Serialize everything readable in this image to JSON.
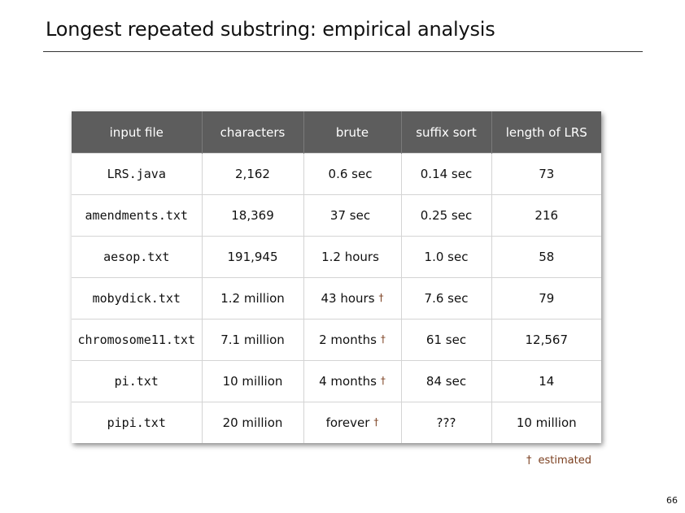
{
  "slide": {
    "title": "Longest repeated substring:  empirical analysis",
    "page_number": "66"
  },
  "table": {
    "headers": [
      "input file",
      "characters",
      "brute",
      "suffix sort",
      "length of LRS"
    ],
    "rows": [
      {
        "file": "LRS.java",
        "characters": "2,162",
        "brute": "0.6 sec",
        "brute_estimated": "",
        "suffix_sort": "0.14 sec",
        "lrs_length": "73"
      },
      {
        "file": "amendments.txt",
        "characters": "18,369",
        "brute": "37 sec",
        "brute_estimated": "",
        "suffix_sort": "0.25 sec",
        "lrs_length": "216"
      },
      {
        "file": "aesop.txt",
        "characters": "191,945",
        "brute": "1.2 hours",
        "brute_estimated": "",
        "suffix_sort": "1.0 sec",
        "lrs_length": "58"
      },
      {
        "file": "mobydick.txt",
        "characters": "1.2 million",
        "brute": "43 hours",
        "brute_estimated": "†",
        "suffix_sort": "7.6 sec",
        "lrs_length": "79"
      },
      {
        "file": "chromosome11.txt",
        "characters": "7.1 million",
        "brute": "2 months",
        "brute_estimated": "†",
        "suffix_sort": "61 sec",
        "lrs_length": "12,567"
      },
      {
        "file": "pi.txt",
        "characters": "10 million",
        "brute": "4 months",
        "brute_estimated": "†",
        "suffix_sort": "84 sec",
        "lrs_length": "14"
      },
      {
        "file": "pipi.txt",
        "characters": "20 million",
        "brute": "forever",
        "brute_estimated": "†",
        "suffix_sort": "???",
        "lrs_length": "10 million"
      }
    ]
  },
  "footnote": {
    "symbol": "†",
    "text": "estimated"
  },
  "colors": {
    "header_bg": "#5d5d5d",
    "accent": "#7b3f1f"
  }
}
